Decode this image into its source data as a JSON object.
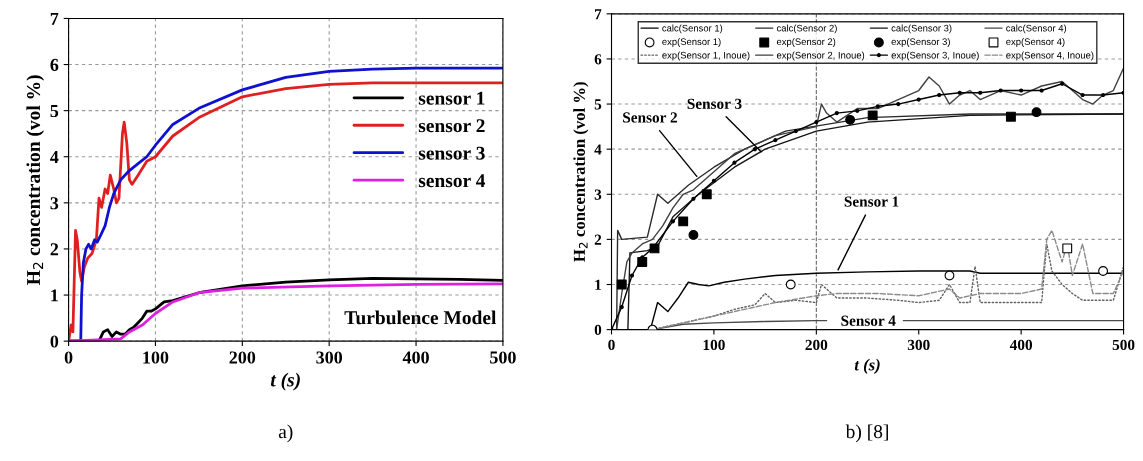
{
  "chart_data": [
    {
      "type": "line",
      "xlabel": "t (s)",
      "ylabel": "H$_{2}$ concentration (vol %)",
      "xlim": [
        0,
        500
      ],
      "ylim": [
        0,
        7
      ],
      "xticks": [
        0,
        100,
        200,
        300,
        400,
        500
      ],
      "yticks": [
        0,
        1,
        2,
        3,
        4,
        5,
        6,
        7
      ],
      "grid": true,
      "legend": "center right",
      "annotations": [
        "Turbulence Model",
        "a)"
      ],
      "series": [
        {
          "name": "sensor 1",
          "color": "#000000",
          "x": [
            0,
            35,
            40,
            45,
            50,
            55,
            60,
            65,
            70,
            75,
            80,
            85,
            90,
            95,
            100,
            110,
            120,
            150,
            200,
            250,
            300,
            350,
            400,
            450,
            500
          ],
          "values": [
            0,
            0,
            0.2,
            0.25,
            0.1,
            0.2,
            0.15,
            0.15,
            0.25,
            0.3,
            0.4,
            0.5,
            0.65,
            0.65,
            0.7,
            0.85,
            0.88,
            1.05,
            1.2,
            1.28,
            1.33,
            1.36,
            1.35,
            1.34,
            1.32
          ]
        },
        {
          "name": "sensor 2",
          "color": "#e02020",
          "x": [
            0,
            3,
            5,
            8,
            10,
            13,
            15,
            18,
            22,
            27,
            32,
            35,
            38,
            42,
            45,
            48,
            52,
            55,
            58,
            62,
            64,
            67,
            70,
            73,
            80,
            90,
            100,
            120,
            150,
            200,
            250,
            300,
            350,
            400,
            500
          ],
          "values": [
            0,
            0.35,
            0.2,
            2.4,
            2.2,
            1.5,
            1.3,
            1.6,
            1.8,
            1.9,
            2.2,
            3.1,
            2.9,
            3.3,
            3.2,
            3.6,
            3.3,
            3.0,
            3.1,
            4.5,
            4.75,
            4.3,
            3.5,
            3.4,
            3.6,
            3.9,
            4.0,
            4.45,
            4.85,
            5.3,
            5.48,
            5.57,
            5.6,
            5.6,
            5.6
          ]
        },
        {
          "name": "sensor 3",
          "color": "#1010d0",
          "x": [
            0,
            14,
            15,
            17,
            20,
            23,
            26,
            30,
            33,
            37,
            42,
            47,
            52,
            60,
            70,
            80,
            90,
            100,
            120,
            150,
            200,
            250,
            300,
            350,
            400,
            500
          ],
          "values": [
            0,
            0,
            1.0,
            1.7,
            2.0,
            2.1,
            2.0,
            2.2,
            2.15,
            2.3,
            2.5,
            2.9,
            3.2,
            3.5,
            3.7,
            3.85,
            4.0,
            4.25,
            4.7,
            5.05,
            5.45,
            5.72,
            5.85,
            5.9,
            5.92,
            5.92
          ]
        },
        {
          "name": "sensor 4",
          "color": "#e020e0",
          "x": [
            0,
            60,
            70,
            80,
            85,
            100,
            120,
            150,
            200,
            300,
            400,
            500
          ],
          "values": [
            0,
            0.05,
            0.2,
            0.3,
            0.35,
            0.6,
            0.85,
            1.05,
            1.15,
            1.2,
            1.23,
            1.24
          ]
        }
      ]
    },
    {
      "type": "line",
      "xlabel": "t (s)",
      "ylabel": "H$_{2}$ concentration (vol %)",
      "xlim": [
        0,
        500
      ],
      "ylim": [
        0,
        7
      ],
      "xticks": [
        0,
        100,
        200,
        300,
        400,
        500
      ],
      "yticks": [
        0,
        1,
        2,
        3,
        4,
        5,
        6,
        7
      ],
      "grid": "y",
      "legend": "top",
      "ref_lines": [
        {
          "axis": "x",
          "value": 200,
          "line_style": "dashed",
          "color": "#666666"
        }
      ],
      "annotations": [
        {
          "text": "Sensor 2",
          "x": 85,
          "y": 3.35
        },
        {
          "text": "Sensor 3",
          "x": 148,
          "y": 3.9
        },
        {
          "text": "Sensor 1",
          "x": 220,
          "y": 1.27
        },
        {
          "text": "Sensor 4",
          "x": 210,
          "y": 0.2
        },
        "b) [8]"
      ],
      "series": [
        {
          "name": "calc(Sensor 1)",
          "color": "#000000",
          "line_style": "solid",
          "marker": "none",
          "x": [
            0,
            38,
            45,
            55,
            65,
            75,
            85,
            95,
            110,
            130,
            160,
            200,
            250,
            300,
            350,
            360,
            400,
            500
          ],
          "values": [
            0,
            0,
            0.6,
            0.4,
            0.7,
            1.05,
            1.0,
            0.97,
            1.05,
            1.12,
            1.2,
            1.25,
            1.28,
            1.3,
            1.3,
            1.25,
            1.25,
            1.25
          ]
        },
        {
          "name": "calc(Sensor 2)",
          "color": "#2b2b2b",
          "line_style": "solid",
          "marker": "none",
          "x": [
            0,
            5,
            6,
            10,
            35,
            45,
            55,
            75,
            100,
            130,
            170,
            250,
            350,
            500
          ],
          "values": [
            0,
            0,
            2.2,
            2.0,
            2.05,
            3.0,
            2.8,
            3.2,
            3.6,
            4.0,
            4.4,
            4.7,
            4.78,
            4.78
          ]
        },
        {
          "name": "calc(Sensor 3)",
          "color": "#151515",
          "line_style": "solid",
          "marker": "none",
          "x": [
            0,
            16,
            18,
            35,
            45,
            60,
            85,
            120,
            150,
            200,
            250,
            350,
            500
          ],
          "values": [
            0,
            0,
            1.7,
            1.75,
            1.85,
            2.5,
            3.0,
            3.6,
            4.0,
            4.4,
            4.6,
            4.75,
            4.78
          ]
        },
        {
          "name": "calc(Sensor 4)",
          "color": "#4a4a4a",
          "line_style": "solid",
          "marker": "none",
          "x": [
            0,
            40,
            70,
            100,
            150,
            200,
            210,
            247,
            285,
            300,
            500
          ],
          "values": [
            0,
            0,
            0.12,
            0.15,
            0.18,
            0.2,
            0.2,
            null,
            0.2,
            0.2,
            0.2
          ]
        },
        {
          "name": "exp(Sensor 1)",
          "type": "scatter",
          "color": "#ffffff",
          "marker": "circle",
          "x": [
            40,
            175,
            330,
            480
          ],
          "values": [
            0,
            1.0,
            1.2,
            1.3
          ]
        },
        {
          "name": "exp(Sensor 2)",
          "type": "scatter",
          "color": "#000000",
          "marker": "square",
          "x": [
            10,
            30,
            42,
            70,
            93,
            255,
            390
          ],
          "values": [
            1.0,
            1.5,
            1.8,
            2.4,
            3.0,
            4.75,
            4.72
          ]
        },
        {
          "name": "exp(Sensor 3)",
          "type": "scatter",
          "color": "#000000",
          "marker": "circle",
          "x": [
            80,
            233,
            415
          ],
          "values": [
            2.1,
            4.65,
            4.82
          ]
        },
        {
          "name": "exp(Sensor 4)",
          "type": "scatter",
          "color": "#ffffff",
          "marker": "square",
          "x": [
            445
          ],
          "values": [
            1.8
          ]
        },
        {
          "name": "exp(Sensor 1, Inoue)",
          "color": "#606060",
          "line_style": "dotted",
          "marker": "none",
          "x": [
            0,
            40,
            60,
            80,
            100,
            120,
            140,
            150,
            160,
            180,
            200,
            205,
            220,
            250,
            280,
            300,
            320,
            330,
            340,
            350,
            355,
            360,
            370,
            400,
            420,
            425,
            430,
            440,
            450,
            460,
            470,
            490,
            500
          ],
          "values": [
            0,
            0,
            0.1,
            0.2,
            0.3,
            0.45,
            0.55,
            0.8,
            0.6,
            0.65,
            0.6,
            1.0,
            0.7,
            0.7,
            0.65,
            0.6,
            0.65,
            1.0,
            0.6,
            0.6,
            1.4,
            0.6,
            0.6,
            0.6,
            0.6,
            1.9,
            1.3,
            1.0,
            0.8,
            0.65,
            0.65,
            0.65,
            1.4
          ]
        },
        {
          "name": "exp(Sensor 2, Inoue)",
          "color": "#404040",
          "line_style": "solid",
          "marker": "none",
          "x": [
            0,
            5,
            10,
            15,
            20,
            30,
            40,
            50,
            60,
            70,
            80,
            90,
            100,
            120,
            140,
            160,
            180,
            200,
            205,
            210,
            220,
            240,
            260,
            280,
            300,
            310,
            320,
            330,
            340,
            350,
            360,
            380,
            400,
            420,
            440,
            450,
            460,
            470,
            480,
            490,
            500
          ],
          "values": [
            0,
            0,
            0.8,
            1.5,
            1.7,
            1.9,
            2.0,
            2.3,
            2.7,
            3.0,
            3.1,
            3.3,
            3.5,
            3.9,
            4.1,
            4.3,
            4.4,
            4.5,
            5.0,
            4.8,
            4.6,
            4.9,
            4.9,
            5.1,
            5.3,
            5.6,
            5.4,
            5.0,
            5.2,
            5.3,
            5.1,
            5.3,
            5.2,
            5.4,
            5.5,
            5.3,
            5.1,
            5.0,
            5.2,
            5.3,
            5.8
          ]
        },
        {
          "name": "exp(Sensor 3, Inoue)",
          "color": "#000000",
          "line_style": "solid",
          "marker": "circle",
          "x": [
            0,
            10,
            20,
            30,
            40,
            60,
            80,
            100,
            120,
            140,
            160,
            180,
            200,
            220,
            240,
            260,
            280,
            300,
            320,
            340,
            360,
            380,
            400,
            420,
            440,
            460,
            480,
            500
          ],
          "values": [
            0,
            0.5,
            1.2,
            1.6,
            1.8,
            2.4,
            2.9,
            3.3,
            3.7,
            4.0,
            4.2,
            4.4,
            4.6,
            4.8,
            4.85,
            4.95,
            5.0,
            5.1,
            5.2,
            5.25,
            5.25,
            5.3,
            5.3,
            5.3,
            5.45,
            5.2,
            5.2,
            5.25
          ]
        },
        {
          "name": "exp(Sensor 4, Inoue)",
          "color": "#8a8a8a",
          "line_style": "dashed",
          "marker": "none",
          "x": [
            0,
            40,
            80,
            120,
            160,
            200,
            220,
            260,
            300,
            330,
            340,
            360,
            400,
            420,
            425,
            430,
            440,
            445,
            450,
            460,
            470,
            490,
            500
          ],
          "values": [
            0,
            0,
            0.2,
            0.4,
            0.6,
            0.75,
            0.8,
            0.8,
            0.75,
            0.9,
            0.7,
            0.8,
            0.8,
            0.9,
            2.0,
            2.2,
            1.5,
            1.9,
            1.2,
            1.9,
            0.8,
            0.8,
            1.3
          ]
        }
      ]
    }
  ]
}
